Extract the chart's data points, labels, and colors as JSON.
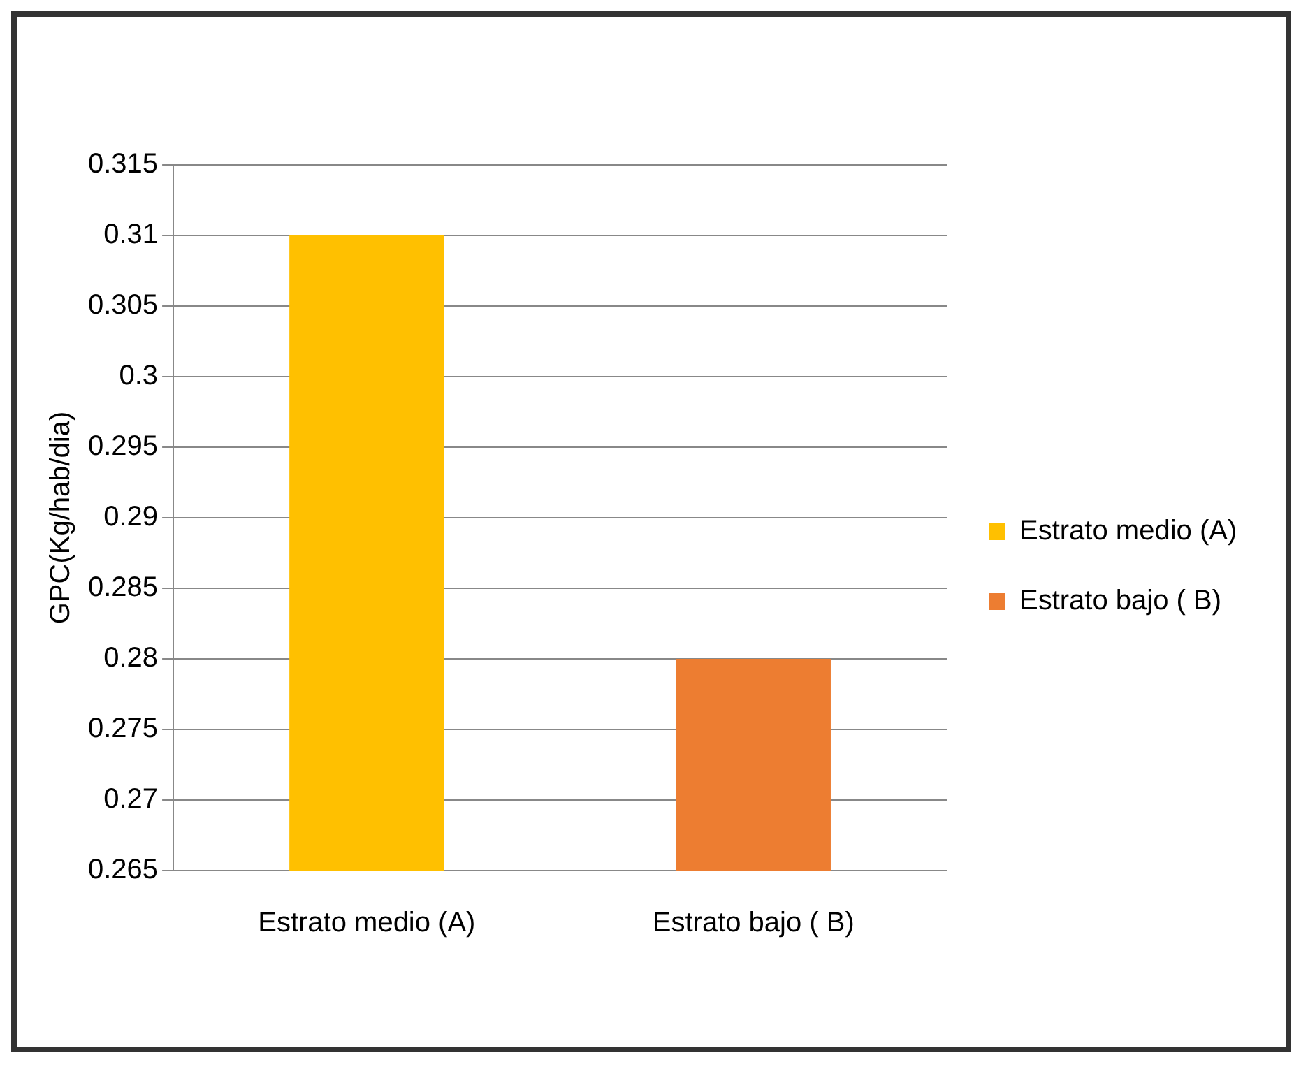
{
  "chart_data": {
    "type": "bar",
    "ylabel": "GPC(Kg/hab/dia)",
    "categories": [
      "Estrato medio (A)",
      "Estrato bajo ( B)"
    ],
    "series": [
      {
        "name": "Estrato medio (A)",
        "color": "#ffc000",
        "values": [
          0.31,
          null
        ]
      },
      {
        "name": "Estrato bajo ( B)",
        "color": "#ed7d31",
        "values": [
          null,
          0.28
        ]
      }
    ],
    "ylim": [
      0.265,
      0.315
    ],
    "yticks": [
      0.265,
      0.27,
      0.275,
      0.28,
      0.285,
      0.29,
      0.295,
      0.3,
      0.305,
      0.31,
      0.315
    ],
    "grid": "y",
    "legend": "right"
  }
}
